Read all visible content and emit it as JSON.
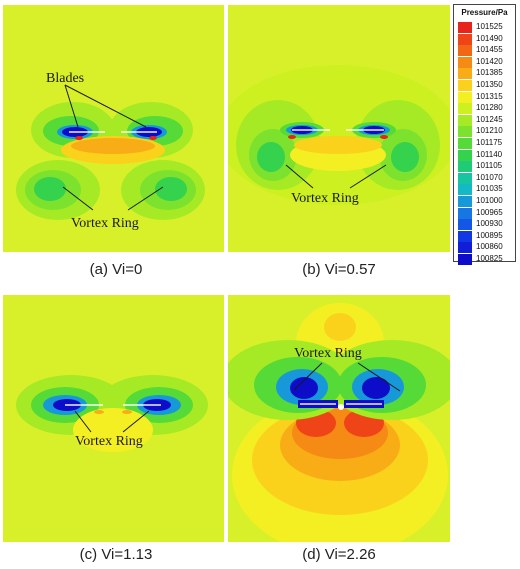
{
  "legend": {
    "title": "Pressure/Pa",
    "levels": [
      {
        "value": "101525",
        "color": "#e8231b"
      },
      {
        "value": "101490",
        "color": "#ee4417"
      },
      {
        "value": "101455",
        "color": "#f26715"
      },
      {
        "value": "101420",
        "color": "#f58a14"
      },
      {
        "value": "101385",
        "color": "#f8ad16"
      },
      {
        "value": "101350",
        "color": "#fad21c"
      },
      {
        "value": "101315",
        "color": "#f4ef22"
      },
      {
        "value": "101280",
        "color": "#cdf021"
      },
      {
        "value": "101245",
        "color": "#a6ea26"
      },
      {
        "value": "101210",
        "color": "#7de22e"
      },
      {
        "value": "101175",
        "color": "#55da37"
      },
      {
        "value": "101140",
        "color": "#34d24d"
      },
      {
        "value": "101105",
        "color": "#1fcb74"
      },
      {
        "value": "101070",
        "color": "#17c5a0"
      },
      {
        "value": "101035",
        "color": "#15b9c6"
      },
      {
        "value": "101000",
        "color": "#1798d8"
      },
      {
        "value": "100965",
        "color": "#1677e2"
      },
      {
        "value": "100930",
        "color": "#1457e6"
      },
      {
        "value": "100895",
        "color": "#1238e4"
      },
      {
        "value": "100860",
        "color": "#101ed8"
      },
      {
        "value": "100825",
        "color": "#0c0cc9"
      }
    ]
  },
  "colors": {
    "background_field": "#d8f02a",
    "blade": "#1a1a1a"
  },
  "panels": [
    {
      "caption": "(a) Vi=0",
      "annotations": [
        "Blades",
        "Vortex Ring"
      ]
    },
    {
      "caption": "(b) Vi=0.57",
      "annotations": [
        "Vortex Ring"
      ]
    },
    {
      "caption": "(c) Vi=1.13",
      "annotations": [
        "Vortex Ring"
      ]
    },
    {
      "caption": "(d) Vi=2.26",
      "annotations": [
        "Vortex Ring"
      ]
    }
  ]
}
